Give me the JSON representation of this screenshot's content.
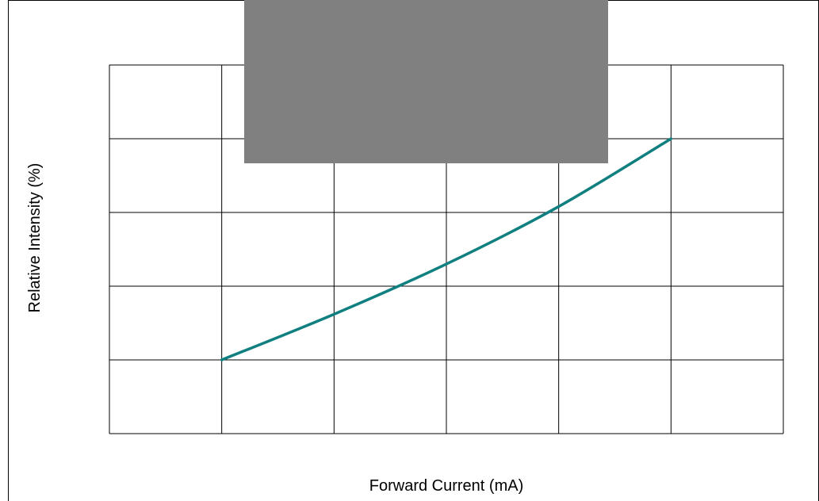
{
  "chart_data": {
    "type": "line",
    "title": "",
    "xlabel": "Forward Current (mA)",
    "ylabel": "Relative Intensity (%)",
    "x_grid_divisions": 6,
    "y_grid_divisions": 5,
    "grid": true,
    "series": [
      {
        "color": "#0f7f80",
        "points": [
          {
            "x": 1,
            "y": 1
          },
          {
            "x": 2,
            "y": 1.62
          },
          {
            "x": 3,
            "y": 2.3
          },
          {
            "x": 4,
            "y": 3.08
          },
          {
            "x": 5,
            "y": 4.0
          }
        ]
      }
    ],
    "xlim": [
      0,
      6
    ],
    "ylim": [
      0,
      5
    ]
  },
  "overlay": {
    "color": "#808080"
  },
  "colors": {
    "grid": "#000000",
    "border": "#000000",
    "background": "#ffffff"
  }
}
